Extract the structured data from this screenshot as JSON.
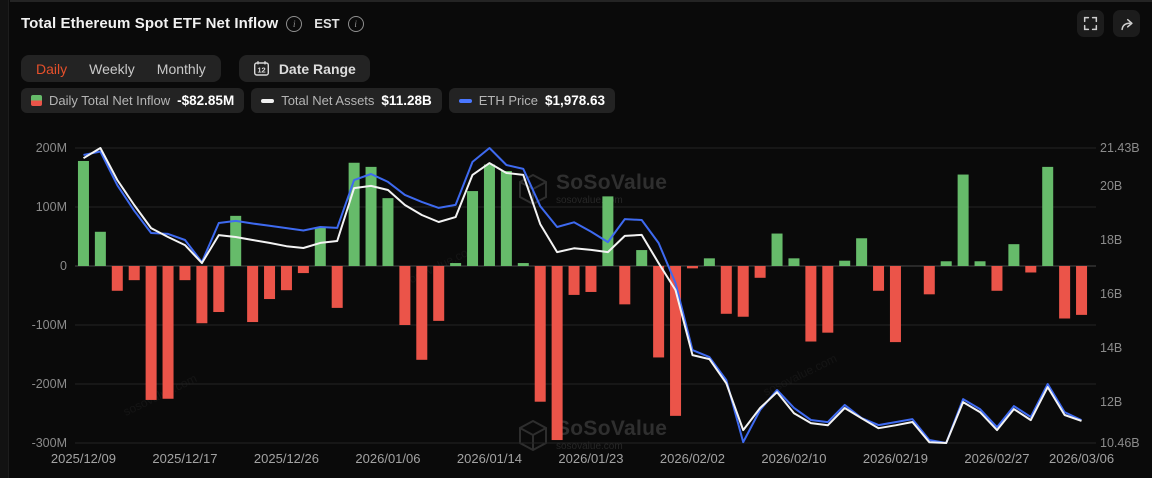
{
  "header": {
    "title": "Total Ethereum Spot ETF Net Inflow",
    "est_label": "EST"
  },
  "toolbar": {
    "tabs": [
      {
        "label": "Daily",
        "active": true
      },
      {
        "label": "Weekly",
        "active": false
      },
      {
        "label": "Monthly",
        "active": false
      }
    ],
    "date_range_label": "Date Range",
    "calendar_day_number": "12"
  },
  "legend": {
    "items": [
      {
        "icon": "green-red-bar-swatch",
        "label": "Daily Total Net Inflow",
        "value": "-$82.85M"
      },
      {
        "icon": "white-dash-swatch",
        "label": "Total Net Assets",
        "value": "$11.28B"
      },
      {
        "icon": "blue-dash-swatch",
        "label": "ETH Price",
        "value": "$1,978.63"
      }
    ]
  },
  "watermark": {
    "brand": "SoSoValue",
    "domain": "sosovalue.com"
  },
  "colors": {
    "background": "#0a0a0a",
    "inflow_positive": "#66bb6a",
    "inflow_negative": "#eb5449",
    "net_assets_line": "#f3f3f3",
    "eth_price_line": "#3e6af0",
    "active_tab_accent": "#e5502b",
    "gridline": "#242424",
    "zero_line": "#484848"
  },
  "chart_data": {
    "type": "combo",
    "title": "Total Ethereum Spot ETF Net Inflow",
    "dates": [
      "2025/12/09",
      "2025/12/10",
      "2025/12/11",
      "2025/12/12",
      "2025/12/15",
      "2025/12/16",
      "2025/12/17",
      "2025/12/18",
      "2025/12/19",
      "2025/12/22",
      "2025/12/23",
      "2025/12/24",
      "2025/12/26",
      "2025/12/29",
      "2025/12/30",
      "2025/12/31",
      "2026/01/02",
      "2026/01/05",
      "2026/01/06",
      "2026/01/07",
      "2026/01/08",
      "2026/01/09",
      "2026/01/12",
      "2026/01/13",
      "2026/01/14",
      "2026/01/15",
      "2026/01/16",
      "2026/01/20",
      "2026/01/21",
      "2026/01/22",
      "2026/01/23",
      "2026/01/26",
      "2026/01/27",
      "2026/01/28",
      "2026/01/29",
      "2026/01/30",
      "2026/02/02",
      "2026/02/03",
      "2026/02/04",
      "2026/02/05",
      "2026/02/06",
      "2026/02/09",
      "2026/02/10",
      "2026/02/11",
      "2026/02/12",
      "2026/02/13",
      "2026/02/17",
      "2026/02/18",
      "2026/02/19",
      "2026/02/20",
      "2026/02/23",
      "2026/02/24",
      "2026/02/25",
      "2026/02/26",
      "2026/02/27",
      "2026/03/02",
      "2026/03/03",
      "2026/03/04",
      "2026/03/05",
      "2026/03/06"
    ],
    "series": [
      {
        "name": "Daily Total Net Inflow",
        "type": "bar",
        "axis": "left",
        "unit": "M USD",
        "values": [
          178,
          58,
          -42,
          -24,
          -227,
          -225,
          -24,
          -97,
          -78,
          85,
          -95,
          -56,
          -41,
          -12,
          66,
          -71,
          175,
          168,
          115,
          -100,
          -159,
          -93,
          5,
          127,
          172,
          161,
          5,
          -230,
          -295,
          -49,
          -44,
          118,
          -65,
          27,
          -155,
          -254,
          -4,
          13,
          -81,
          -86,
          -20,
          55,
          13,
          -128,
          -113,
          9,
          47,
          -42,
          -129,
          0,
          -48,
          8,
          155,
          8,
          -42,
          37,
          -11,
          168,
          -89,
          -82.85
        ]
      },
      {
        "name": "Total Net Assets",
        "type": "line",
        "axis": "right",
        "unit": "B USD",
        "values": [
          21.05,
          21.43,
          20.24,
          19.31,
          18.45,
          18.12,
          17.82,
          17.15,
          18.19,
          18.12,
          18.01,
          17.9,
          17.78,
          17.71,
          17.9,
          17.97,
          19.94,
          20.02,
          19.87,
          19.31,
          18.94,
          18.68,
          18.86,
          20.43,
          20.87,
          20.5,
          20.43,
          18.6,
          17.56,
          17.7,
          17.64,
          17.56,
          18.16,
          18.2,
          17.15,
          16.15,
          13.73,
          13.58,
          12.68,
          10.94,
          11.76,
          12.35,
          11.57,
          11.2,
          11.12,
          11.76,
          11.38,
          11.01,
          11.12,
          11.24,
          10.49,
          10.46,
          11.98,
          11.61,
          10.94,
          11.72,
          11.31,
          12.54,
          11.5,
          11.28
        ]
      },
      {
        "name": "ETH Price",
        "type": "line",
        "axis": "hidden",
        "unit": "USD",
        "values": [
          3120,
          3135,
          2990,
          2880,
          2784,
          2780,
          2754,
          2659,
          2827,
          2836,
          2825,
          2815,
          2805,
          2795,
          2810,
          2806,
          3012,
          3038,
          3004,
          2948,
          2918,
          2892,
          2905,
          3090,
          3150,
          3077,
          3060,
          2900,
          2810,
          2830,
          2790,
          2745,
          2844,
          2840,
          2741,
          2569,
          2280,
          2250,
          2151,
          1884,
          2022,
          2108,
          2031,
          1979,
          1970,
          2044,
          1987,
          1957,
          1970,
          1983,
          1893,
          1880,
          2069,
          2026,
          1948,
          2039,
          1992,
          2134,
          2013,
          1978.63
        ]
      }
    ],
    "left_axis": {
      "unit": "M",
      "range": [
        -300,
        200
      ],
      "tick_labels": [
        "200M",
        "100M",
        "0",
        "-100M",
        "-200M",
        "-300M"
      ],
      "tick_values": [
        200,
        100,
        0,
        -100,
        -200,
        -300
      ]
    },
    "right_axis": {
      "unit": "B",
      "range": [
        10.46,
        21.43
      ],
      "tick_labels": [
        "21.43B",
        "20B",
        "18B",
        "16B",
        "14B",
        "12B",
        "10.46B"
      ],
      "tick_values": [
        21.43,
        20,
        18,
        16,
        14,
        12,
        10.46
      ]
    },
    "eth_axis_range": [
      1880,
      3150
    ],
    "x_tick_indices": [
      0,
      6,
      12,
      18,
      24,
      30,
      36,
      42,
      48,
      54,
      59
    ],
    "grid": true,
    "legend_position": "top-left"
  }
}
